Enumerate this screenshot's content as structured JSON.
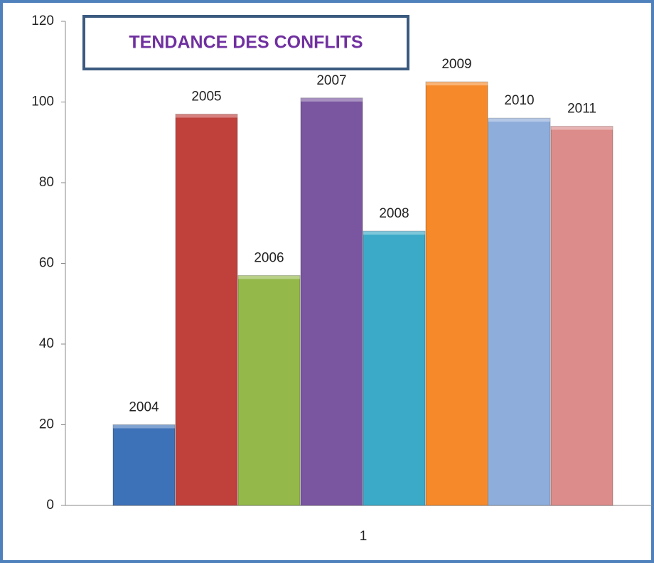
{
  "chart_data": {
    "type": "bar",
    "title": "TENDANCE DES CONFLITS",
    "categories": [
      "1"
    ],
    "series": [
      {
        "name": "2004",
        "color": "#3e72b8",
        "values": [
          20
        ]
      },
      {
        "name": "2005",
        "color": "#c0403c",
        "values": [
          97
        ]
      },
      {
        "name": "2006",
        "color": "#94b94a",
        "values": [
          57
        ]
      },
      {
        "name": "2007",
        "color": "#7a56a0",
        "values": [
          101
        ]
      },
      {
        "name": "2008",
        "color": "#3aaac8",
        "values": [
          68
        ]
      },
      {
        "name": "2009",
        "color": "#f68a2a",
        "values": [
          105
        ]
      },
      {
        "name": "2010",
        "color": "#8eaddb",
        "values": [
          96
        ]
      },
      {
        "name": "2011",
        "color": "#dc8c8a",
        "values": [
          94
        ]
      }
    ],
    "ylim": [
      0,
      120
    ],
    "yticks": [
      0,
      20,
      40,
      60,
      80,
      100,
      120
    ],
    "grid": false
  }
}
